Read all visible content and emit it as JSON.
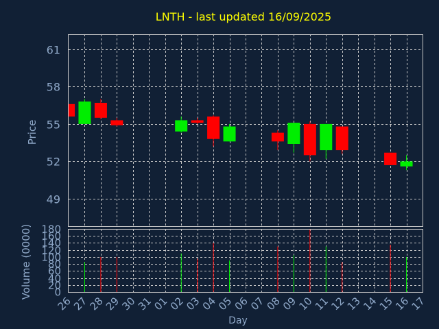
{
  "chart_data": {
    "type": "candlestick",
    "title": "LNTH - last updated 16/09/2025",
    "xlabel": "Day",
    "price_ylabel": "Price",
    "volume_ylabel": "Volume (0000)",
    "x_ticks": [
      "26",
      "27",
      "28",
      "29",
      "30",
      "31",
      "01",
      "02",
      "03",
      "04",
      "05",
      "06",
      "07",
      "08",
      "09",
      "10",
      "11",
      "12",
      "13",
      "14",
      "15",
      "16",
      "17"
    ],
    "price_ylim": [
      46.8,
      62.2
    ],
    "price_ticks": [
      49,
      52,
      55,
      58,
      61
    ],
    "volume_ylim": [
      0,
      180
    ],
    "volume_ticks": [
      0,
      20,
      40,
      60,
      80,
      100,
      120,
      140,
      160,
      180
    ],
    "grid": true,
    "up_color": "#00ee00",
    "down_color": "#ff0000",
    "candles": [
      {
        "day": "26",
        "open": 56.6,
        "high": 56.6,
        "low": 55.6,
        "close": 55.6,
        "volume": 0
      },
      {
        "day": "27",
        "open": 55.0,
        "high": 57.0,
        "low": 55.0,
        "close": 56.8,
        "volume": 85
      },
      {
        "day": "28",
        "open": 56.7,
        "high": 57.0,
        "low": 55.4,
        "close": 55.5,
        "volume": 100
      },
      {
        "day": "29",
        "open": 55.3,
        "high": 55.5,
        "low": 54.8,
        "close": 54.9,
        "volume": 100
      },
      {
        "day": "02",
        "open": 54.4,
        "high": 55.6,
        "low": 54.3,
        "close": 55.3,
        "volume": 110
      },
      {
        "day": "03",
        "open": 55.3,
        "high": 55.5,
        "low": 55.0,
        "close": 55.1,
        "volume": 95
      },
      {
        "day": "04",
        "open": 55.6,
        "high": 55.7,
        "low": 53.2,
        "close": 53.8,
        "volume": 140
      },
      {
        "day": "05",
        "open": 53.6,
        "high": 55.0,
        "low": 53.6,
        "close": 54.8,
        "volume": 90
      },
      {
        "day": "08",
        "open": 54.3,
        "high": 54.5,
        "low": 52.9,
        "close": 53.6,
        "volume": 130
      },
      {
        "day": "09",
        "open": 53.4,
        "high": 55.1,
        "low": 52.7,
        "close": 55.1,
        "volume": 105
      },
      {
        "day": "10",
        "open": 55.0,
        "high": 55.2,
        "low": 52.0,
        "close": 52.5,
        "volume": 180
      },
      {
        "day": "11",
        "open": 52.9,
        "high": 55.0,
        "low": 52.2,
        "close": 55.0,
        "volume": 130
      },
      {
        "day": "12",
        "open": 54.8,
        "high": 54.8,
        "low": 52.6,
        "close": 52.9,
        "volume": 85
      },
      {
        "day": "15",
        "open": 52.7,
        "high": 52.7,
        "low": 51.7,
        "close": 51.7,
        "volume": 135
      },
      {
        "day": "16",
        "open": 51.6,
        "high": 52.5,
        "low": 51.3,
        "close": 52.0,
        "volume": 100
      }
    ]
  }
}
